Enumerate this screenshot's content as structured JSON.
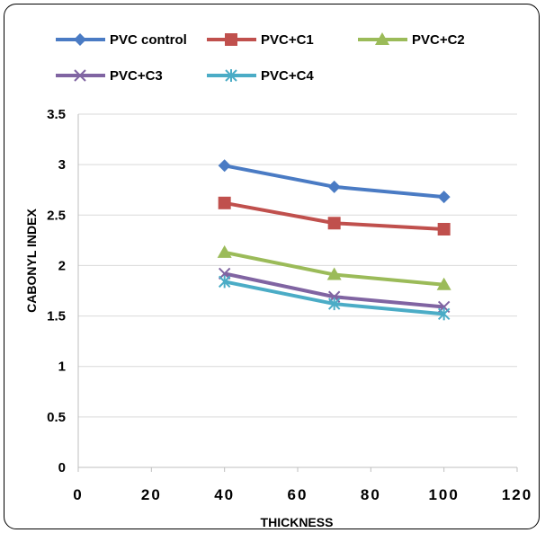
{
  "chart_data": {
    "type": "line",
    "title": "",
    "xlabel": "THICKNESS",
    "ylabel": "CABONYL INDEX",
    "x": [
      40,
      70,
      100
    ],
    "xlim": [
      0,
      120
    ],
    "ylim": [
      0,
      3.5
    ],
    "xticks": [
      "0",
      "20",
      "40",
      "60",
      "80",
      "100",
      "120"
    ],
    "yticks": [
      "0",
      "0.5",
      "1",
      "1.5",
      "2",
      "2.5",
      "3",
      "3.5"
    ],
    "grid": "horizontal",
    "legend_position": "top",
    "series": [
      {
        "name": "PVC control",
        "values": [
          2.99,
          2.78,
          2.68
        ],
        "color": "#4a7bc4",
        "marker": "diamond"
      },
      {
        "name": "PVC+C1",
        "values": [
          2.62,
          2.42,
          2.36
        ],
        "color": "#c0504d",
        "marker": "square"
      },
      {
        "name": "PVC+C2",
        "values": [
          2.13,
          1.91,
          1.81
        ],
        "color": "#9bbb59",
        "marker": "triangle"
      },
      {
        "name": "PVC+C3",
        "values": [
          1.92,
          1.69,
          1.59
        ],
        "color": "#8064a2",
        "marker": "x"
      },
      {
        "name": "PVC+C4",
        "values": [
          1.84,
          1.62,
          1.52
        ],
        "color": "#4bacc6",
        "marker": "star"
      }
    ]
  }
}
